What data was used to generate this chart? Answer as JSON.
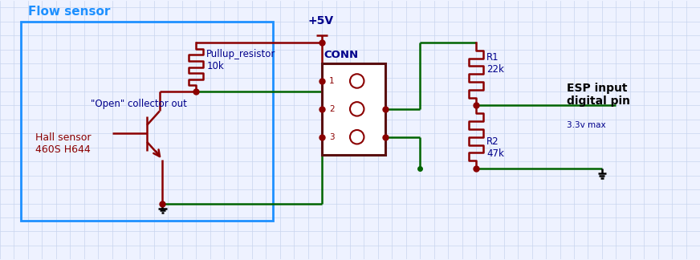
{
  "bg_color": "#eef2ff",
  "grid_color": "#c8d4ee",
  "dark_red": "#8b0000",
  "green": "#006400",
  "dark_blue": "#00008b",
  "light_blue": "#1e90ff",
  "conn_color": "#5a1010",
  "figsize": [
    8.72,
    3.24
  ],
  "dpi": 100,
  "labels": {
    "flow_sensor": "Flow sensor",
    "hall_sensor": "Hall sensor\n460S H644",
    "pullup_resistor": "Pullup_resistor\n10k",
    "open_collector": "\"Open\" collector out",
    "conn": "CONN",
    "plus5v": "+5V",
    "r1": "R1\n22k",
    "r2": "R2\n47k",
    "esp": "ESP input\ndigital pin",
    "esp_sub": "3.3v max"
  }
}
